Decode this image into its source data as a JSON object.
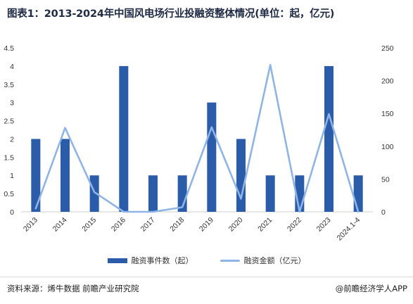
{
  "title": "图表1：2013-2024年中国风电场行业投融资整体情况(单位：起，亿元)",
  "footer": {
    "source": "资料来源：烯牛数据 前瞻产业研究院",
    "brand": "@前瞻经济学人APP"
  },
  "colors": {
    "bar": "#2a5caa",
    "line": "#8fb4e6"
  },
  "chart_data": {
    "type": "bar",
    "categories": [
      "2013",
      "2014",
      "2015",
      "2016",
      "2017",
      "2018",
      "2019",
      "2020",
      "2021",
      "2022",
      "2023",
      "2024.1-4"
    ],
    "series": [
      {
        "name": "融资事件数（起）",
        "type": "bar",
        "axis": "left",
        "values": [
          2,
          2,
          1,
          4,
          1,
          1,
          3,
          2,
          1,
          1,
          4,
          1
        ]
      },
      {
        "name": "融资金额（亿元）",
        "type": "line",
        "axis": "right",
        "values": [
          5,
          128,
          30,
          0,
          0,
          7,
          129,
          20,
          224,
          0,
          149,
          0
        ]
      }
    ],
    "y_left": {
      "min": 0,
      "max": 4.5,
      "ticks": [
        "0",
        "0.5",
        "1",
        "1.5",
        "2",
        "2.5",
        "3",
        "3.5",
        "4",
        "4.5"
      ]
    },
    "y_right": {
      "min": 0,
      "max": 250,
      "ticks": [
        "0",
        "50",
        "100",
        "150",
        "200",
        "250"
      ]
    },
    "grid": false,
    "legend_position": "bottom"
  }
}
